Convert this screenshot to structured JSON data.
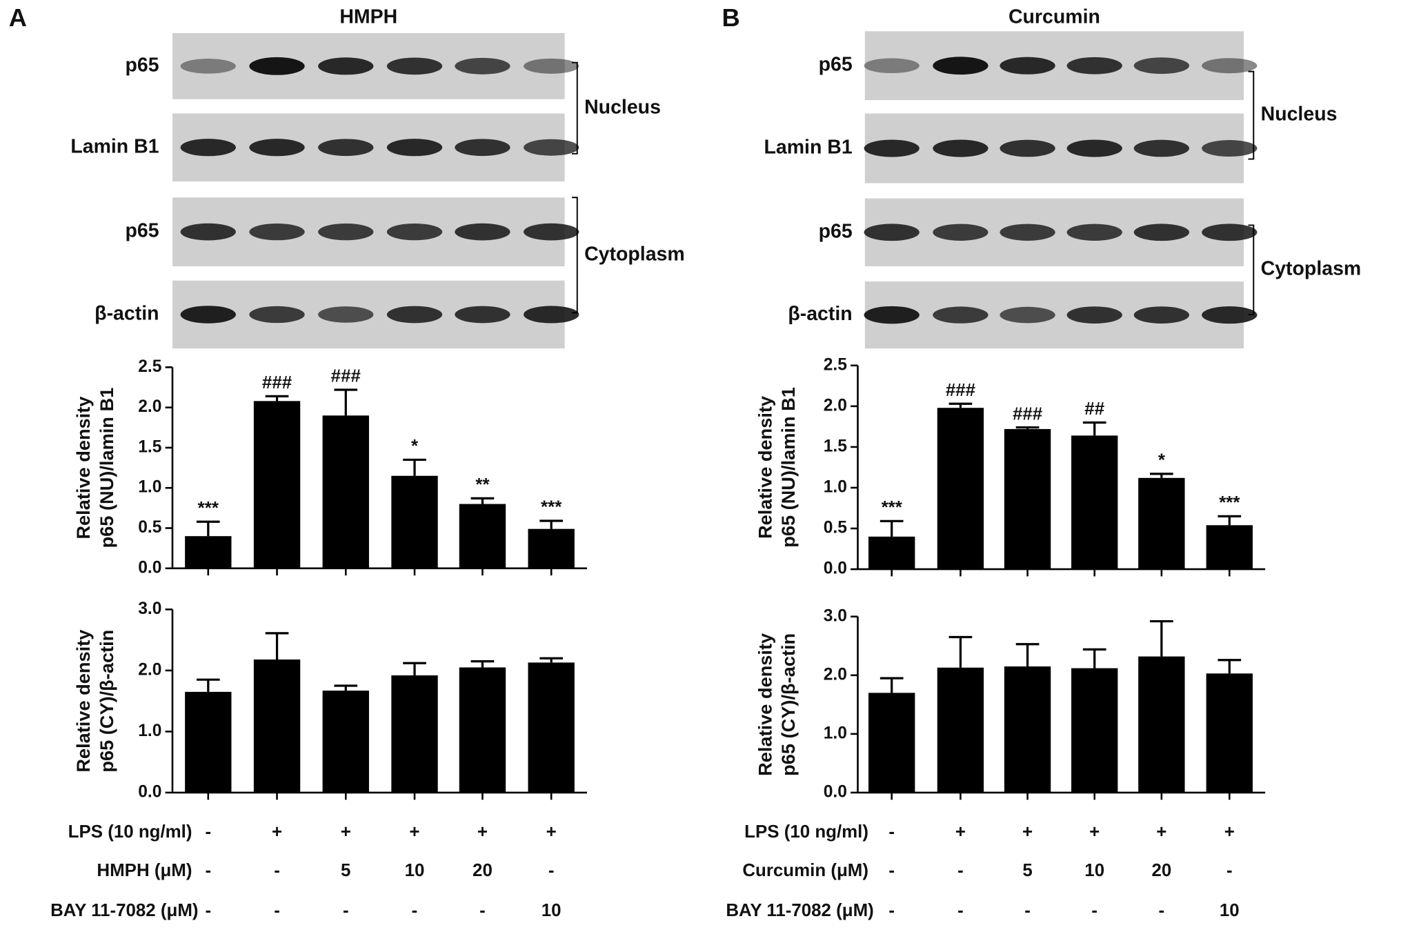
{
  "chart_data": [
    {
      "type": "bar",
      "ylabel": [
        "Relative density",
        "p65 (NU)/lamin B1"
      ],
      "categories": [
        null,
        null,
        null,
        null,
        null,
        null
      ],
      "values": [
        0.4,
        2.08,
        1.9,
        1.15,
        0.8,
        0.49
      ],
      "errors": [
        0.18,
        0.06,
        0.32,
        0.2,
        0.07,
        0.1
      ],
      "annotations": [
        "***",
        "###",
        "###",
        "*",
        "**",
        "***"
      ],
      "color": "#000000",
      "ylim": [
        0,
        2.5
      ],
      "yticks": [
        {
          "value": 0,
          "label": "0.0"
        },
        0.5,
        {
          "value": 1,
          "label": "1.0"
        },
        1.5,
        {
          "value": 2,
          "label": "2.0"
        },
        2.5
      ]
    },
    {
      "type": "bar",
      "ylabel": [
        "Relative density",
        "p65 (CY)/β-actin"
      ],
      "categories": [
        null,
        null,
        null,
        null,
        null,
        null
      ],
      "values": [
        1.65,
        2.18,
        1.67,
        1.92,
        2.05,
        2.13
      ],
      "errors": [
        0.2,
        0.43,
        0.08,
        0.2,
        0.1,
        0.07
      ],
      "color": "#000000",
      "ylim": [
        0,
        3
      ],
      "yticks": [
        {
          "value": 0,
          "label": "0.0"
        },
        {
          "value": 1,
          "label": "1.0"
        },
        {
          "value": 2,
          "label": "2.0"
        },
        {
          "value": 3,
          "label": "3.0"
        }
      ]
    },
    {
      "type": "bar",
      "ylabel": [
        "Relative density",
        "p65 (NU)/lamin B1"
      ],
      "categories": [
        null,
        null,
        null,
        null,
        null,
        null
      ],
      "values": [
        0.4,
        1.98,
        1.72,
        1.64,
        1.12,
        0.54
      ],
      "errors": [
        0.19,
        0.05,
        0.02,
        0.16,
        0.05,
        0.11
      ],
      "annotations": [
        "***",
        "###",
        "###",
        "##",
        "*",
        "***"
      ],
      "color": "#000000",
      "ylim": [
        0,
        2.5
      ],
      "yticks": [
        {
          "value": 0,
          "label": "0.0"
        },
        0.5,
        {
          "value": 1,
          "label": "1.0"
        },
        1.5,
        {
          "value": 2,
          "label": "2.0"
        },
        2.5
      ]
    },
    {
      "type": "bar",
      "ylabel": [
        "Relative density",
        "p65 (CY)/β-actin"
      ],
      "categories": [
        null,
        null,
        null,
        null,
        null,
        null
      ],
      "values": [
        1.7,
        2.13,
        2.15,
        2.12,
        2.32,
        2.03
      ],
      "errors": [
        0.25,
        0.52,
        0.38,
        0.32,
        0.6,
        0.23
      ],
      "color": "#000000",
      "ylim": [
        0,
        3
      ],
      "yticks": [
        {
          "value": 0,
          "label": "0.0"
        },
        {
          "value": 1,
          "label": "1.0"
        },
        {
          "value": 2,
          "label": "2.0"
        },
        {
          "value": 3,
          "label": "3.0"
        }
      ]
    }
  ],
  "panels": [
    {
      "letter": "A",
      "title": "HMPH",
      "blot_labels": [
        "p65",
        "Lamin B1",
        "p65",
        "β-actin"
      ],
      "compartments": [
        "Nucleus",
        "Cytoplasm"
      ],
      "treatments": [
        {
          "label": "LPS (10 ng/ml)",
          "values": [
            "-",
            "+",
            "+",
            "+",
            "+",
            "+"
          ]
        },
        {
          "label": "HMPH (μM)",
          "values": [
            "-",
            "-",
            "5",
            "10",
            "20",
            "-"
          ]
        },
        {
          "label": "BAY 11-7082 (μM)",
          "values": [
            "-",
            "-",
            "-",
            "-",
            "-",
            "10"
          ]
        }
      ]
    },
    {
      "letter": "B",
      "title": "Curcumin",
      "blot_labels": [
        "p65",
        "Lamin B1",
        "p65",
        "β-actin"
      ],
      "compartments": [
        "Nucleus",
        "Cytoplasm"
      ],
      "treatments": [
        {
          "label": "LPS (10 ng/ml)",
          "values": [
            "-",
            "+",
            "+",
            "+",
            "+",
            "+"
          ]
        },
        {
          "label": "Curcumin (μM)",
          "values": [
            "-",
            "-",
            "5",
            "10",
            "20",
            "-"
          ]
        },
        {
          "label": "BAY 11-7082 (μM)",
          "values": [
            "-",
            "-",
            "-",
            "-",
            "-",
            "10"
          ]
        }
      ]
    }
  ]
}
